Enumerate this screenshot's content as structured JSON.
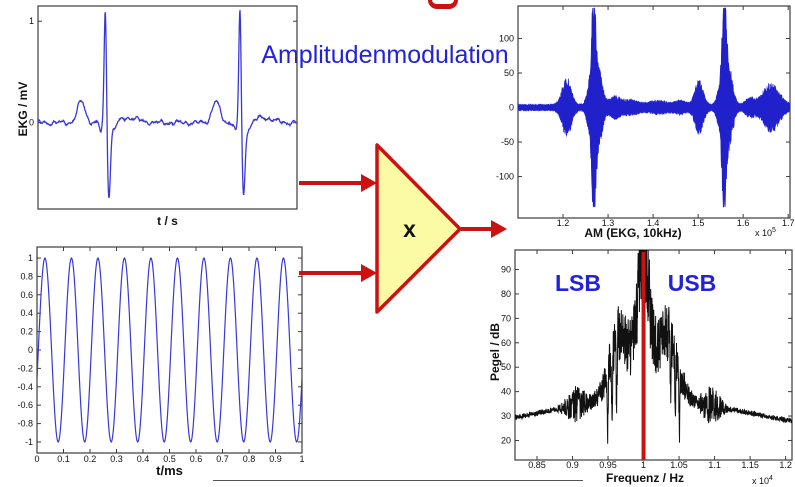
{
  "title": {
    "text": "Amplitudenmodulation"
  },
  "multiplier": {
    "symbol": "x"
  },
  "colors": {
    "accent_red": "#cc1111",
    "label_blue": "#2222dd",
    "signal_blue": "#3838d6",
    "am_blue": "#2121cc",
    "spectrum_black": "#111111",
    "multiplier_fill": "#fbfba6",
    "axis": "#3c3c3c"
  },
  "chart_data": [
    {
      "id": "ekg",
      "type": "line",
      "xlabel": "t / s",
      "ylabel": "EKG / mV",
      "xlim": [
        0,
        1
      ],
      "ylim": [
        -0.85,
        1.15
      ],
      "yticks": [
        {
          "v": 1,
          "label": "1"
        },
        {
          "v": 0,
          "label": "0"
        }
      ],
      "xticks": [],
      "line_color": "#3838d6",
      "signal": {
        "kind": "ekg",
        "beat_centers": [
          0.26,
          0.78
        ],
        "p_amplitude": 0.21,
        "r_amplitude": 1.16,
        "s_depth": -0.7
      }
    },
    {
      "id": "carrier",
      "type": "line",
      "xlabel": "t/ms",
      "ylabel": "",
      "xlim": [
        0,
        1
      ],
      "ylim": [
        -1.12,
        1.12
      ],
      "yticks": [
        {
          "v": 1,
          "label": "1"
        },
        {
          "v": 0.8,
          "label": "0.8"
        },
        {
          "v": 0.6,
          "label": "0.6"
        },
        {
          "v": 0.4,
          "label": "0.4"
        },
        {
          "v": 0.2,
          "label": "0.2"
        },
        {
          "v": 0,
          "label": "0"
        },
        {
          "v": -0.2,
          "label": "-0.2"
        },
        {
          "v": -0.4,
          "label": "-0.4"
        },
        {
          "v": -0.6,
          "label": "-0.6"
        },
        {
          "v": -0.8,
          "label": "-0.8"
        },
        {
          "v": -1,
          "label": "-1"
        }
      ],
      "xticks": [
        {
          "v": 0,
          "label": "0"
        },
        {
          "v": 0.1,
          "label": "0.1"
        },
        {
          "v": 0.2,
          "label": "0.2"
        },
        {
          "v": 0.3,
          "label": "0.3"
        },
        {
          "v": 0.4,
          "label": "0.4"
        },
        {
          "v": 0.5,
          "label": "0.5"
        },
        {
          "v": 0.6,
          "label": "0.6"
        },
        {
          "v": 0.7,
          "label": "0.7"
        },
        {
          "v": 0.8,
          "label": "0.8"
        },
        {
          "v": 0.9,
          "label": "0.9"
        },
        {
          "v": 1,
          "label": "1"
        }
      ],
      "line_color": "#3838d6",
      "signal": {
        "kind": "sine",
        "cycles": 10,
        "amplitude": 1,
        "phase": -0.31
      }
    },
    {
      "id": "am",
      "type": "line-filled",
      "xlabel": "AM (EKG, 10kHz)",
      "x_exponent": {
        "base": "x 10",
        "sup": "5"
      },
      "xlim": [
        1.1,
        1.704
      ],
      "ylim": [
        -160,
        147
      ],
      "yticks": [
        {
          "v": 100,
          "label": "100"
        },
        {
          "v": 50,
          "label": "50"
        },
        {
          "v": 0,
          "label": "0"
        },
        {
          "v": -50,
          "label": "-50"
        },
        {
          "v": -100,
          "label": "-100"
        }
      ],
      "xticks": [
        {
          "v": 1.2,
          "label": "1.2"
        },
        {
          "v": 1.3,
          "label": "1.3"
        },
        {
          "v": 1.4,
          "label": "1.4"
        },
        {
          "v": 1.5,
          "label": "1.5"
        },
        {
          "v": 1.6,
          "label": "1.6"
        },
        {
          "v": 1.7,
          "label": "1.7"
        }
      ],
      "line_color": "#2121cc",
      "signal": {
        "kind": "am-envelope",
        "base": 4,
        "features": [
          {
            "c": 1.208,
            "a": 33,
            "s": 0.01
          },
          {
            "c": 1.258,
            "a": 22,
            "s": 0.006
          },
          {
            "c": 1.268,
            "a": 128,
            "s": 0.0045
          },
          {
            "c": 1.279,
            "a": 44,
            "s": 0.008
          },
          {
            "c": 1.315,
            "a": 10,
            "s": 0.012
          },
          {
            "c": 1.35,
            "a": 6,
            "s": 0.015
          },
          {
            "c": 1.41,
            "a": 5,
            "s": 0.02
          },
          {
            "c": 1.46,
            "a": 5,
            "s": 0.012
          },
          {
            "c": 1.502,
            "a": 30,
            "s": 0.009
          },
          {
            "c": 1.548,
            "a": 22,
            "s": 0.006
          },
          {
            "c": 1.558,
            "a": 128,
            "s": 0.0045
          },
          {
            "c": 1.569,
            "a": 44,
            "s": 0.008
          },
          {
            "c": 1.615,
            "a": 8,
            "s": 0.01
          },
          {
            "c": 1.662,
            "a": 26,
            "s": 0.018
          }
        ]
      }
    },
    {
      "id": "spectrum",
      "type": "line",
      "xlabel": "Frequenz / Hz",
      "ylabel": "Pegel / dB",
      "x_exponent": {
        "base": "x 10",
        "sup": "4"
      },
      "xlim": [
        0.819,
        1.209
      ],
      "ylim": [
        12,
        98
      ],
      "yticks": [
        {
          "v": 90,
          "label": "90"
        },
        {
          "v": 80,
          "label": "80"
        },
        {
          "v": 70,
          "label": "70"
        },
        {
          "v": 60,
          "label": "60"
        },
        {
          "v": 50,
          "label": "50"
        },
        {
          "v": 40,
          "label": "40"
        },
        {
          "v": 30,
          "label": "30"
        },
        {
          "v": 20,
          "label": "20"
        }
      ],
      "xticks": [
        {
          "v": 0.85,
          "label": "0.85"
        },
        {
          "v": 0.9,
          "label": "0.9"
        },
        {
          "v": 0.95,
          "label": "0.95"
        },
        {
          "v": 1,
          "label": "1"
        },
        {
          "v": 1.05,
          "label": "1.05"
        },
        {
          "v": 1.1,
          "label": "1.1"
        },
        {
          "v": 1.15,
          "label": "1.15"
        },
        {
          "v": 1.2,
          "label": "1.2"
        }
      ],
      "line_color": "#111111",
      "annotations": [
        {
          "text": "LSB"
        },
        {
          "text": "USB"
        }
      ],
      "carrier_marker": {
        "x": 1.0,
        "color": "#cc1111"
      },
      "signal": {
        "kind": "spectrum",
        "skirt": {
          "base": 24.5,
          "amp": 13,
          "sigma": 0.13
        },
        "components": [
          {
            "c": 0.967,
            "a": 27,
            "s": 0.014
          },
          {
            "c": 1.033,
            "a": 27,
            "s": 0.014
          },
          {
            "c": 1.0,
            "a": 55,
            "s": 0.0085
          }
        ],
        "noise_floor": 0.7,
        "noise_zones": [
          {
            "c": 0.905,
            "a": 4.5,
            "s": 0.011
          },
          {
            "c": 1.095,
            "a": 4.5,
            "s": 0.011
          },
          {
            "c": 0.968,
            "a": 7,
            "s": 0.02
          },
          {
            "c": 1.032,
            "a": 7,
            "s": 0.02
          },
          {
            "c": 1.0,
            "a": 9,
            "s": 0.01
          }
        ],
        "notches": [
          0.9495,
          0.9555,
          0.962,
          1.038,
          1.0445,
          1.0505
        ]
      }
    }
  ]
}
